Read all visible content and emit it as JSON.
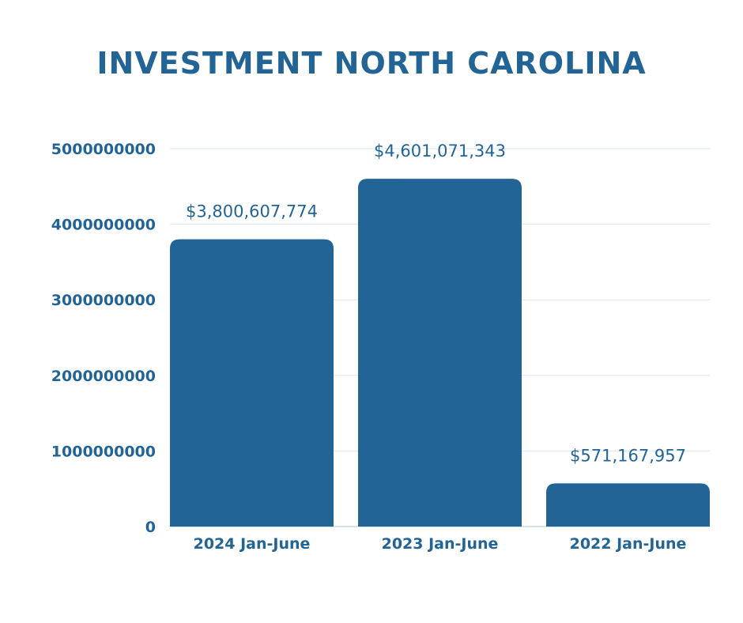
{
  "colors": {
    "bar": "#236496",
    "text": "#236496",
    "grid": "#d9e6ee",
    "axis": "#a9c4d6"
  },
  "chart_data": {
    "type": "bar",
    "title": "INVESTMENT NORTH CAROLINA",
    "xlabel": "",
    "ylabel": "",
    "categories": [
      "2024 Jan-June",
      "2023 Jan-June",
      "2022 Jan-June"
    ],
    "values": [
      3800607774,
      4601071343,
      571167957
    ],
    "data_labels": [
      "$3,800,607,774",
      "$4,601,071,343",
      "$571,167,957"
    ],
    "ylim": [
      0,
      5000000000
    ],
    "yticks": [
      0,
      1000000000,
      2000000000,
      3000000000,
      4000000000,
      5000000000
    ],
    "ytick_labels": [
      "0",
      "1000000000",
      "2000000000",
      "3000000000",
      "4000000000",
      "5000000000"
    ],
    "grid": true,
    "legend": "none"
  }
}
